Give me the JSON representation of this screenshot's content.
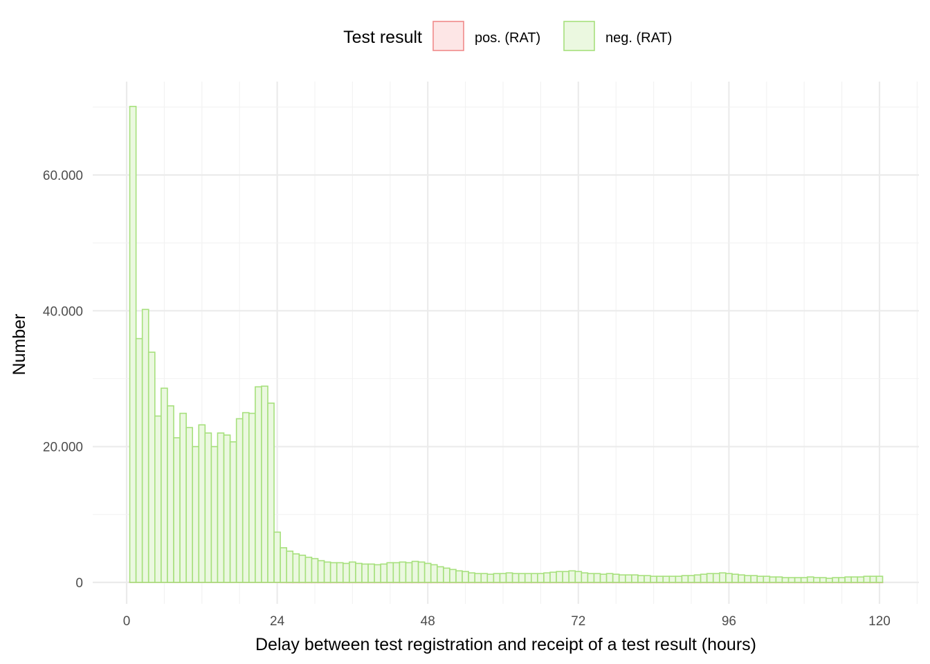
{
  "chart_data": {
    "type": "bar",
    "subtype": "histogram",
    "xlabel": "Delay between test registration and receipt of a test result (hours)",
    "ylabel": "Number",
    "legend": {
      "title": "Test result",
      "position": "top",
      "entries": [
        {
          "label": "pos. (RAT)",
          "fill": "#fde6e6",
          "stroke": "#f08a8a"
        },
        {
          "label": "neg. (RAT)",
          "fill": "#ebf8e0",
          "stroke": "#a6e07c"
        }
      ]
    },
    "xlim": [
      0,
      120
    ],
    "ylim": [
      0,
      70000
    ],
    "x_ticks": [
      0,
      24,
      48,
      72,
      96,
      120
    ],
    "x_tick_labels": [
      "0",
      "24",
      "48",
      "72",
      "96",
      "120"
    ],
    "y_ticks": [
      0,
      20000,
      40000,
      60000
    ],
    "y_tick_labels": [
      "0",
      "20.000",
      "40.000",
      "60.000"
    ],
    "grid": true,
    "bin_width_hours": 1,
    "series": [
      {
        "name": "pos. (RAT)",
        "values": [
          100,
          80,
          70,
          60,
          50,
          50,
          45,
          40,
          40,
          40,
          35,
          35,
          35,
          35,
          35,
          35,
          35,
          35,
          35,
          35,
          35,
          35,
          35,
          30,
          20,
          15,
          15,
          15,
          15,
          15,
          15,
          15,
          15,
          15,
          15,
          15,
          15,
          15,
          15,
          15,
          15,
          15,
          15,
          15,
          15,
          15,
          15,
          15,
          15,
          15,
          15,
          15,
          15,
          15,
          15,
          15,
          15,
          15,
          15,
          15,
          15,
          15,
          15,
          15,
          15,
          15,
          15,
          15,
          15,
          15,
          15,
          15,
          15,
          15,
          15,
          15,
          15,
          15,
          15,
          15,
          15,
          15,
          15,
          15,
          15,
          15,
          15,
          15,
          15,
          15,
          15,
          15,
          15,
          15,
          15,
          15,
          15,
          15,
          15,
          15,
          15,
          15,
          15,
          15,
          15,
          15,
          15,
          15,
          15,
          15,
          15,
          15,
          15,
          15,
          15,
          15,
          15,
          15,
          15,
          15
        ]
      },
      {
        "name": "neg. (RAT)",
        "values": [
          70100,
          35900,
          40200,
          33900,
          24500,
          28600,
          26000,
          21300,
          24900,
          22800,
          20000,
          23200,
          22000,
          20000,
          22000,
          21700,
          20700,
          24100,
          25000,
          24900,
          28800,
          28900,
          26400,
          7400,
          5100,
          4600,
          4200,
          4000,
          3700,
          3500,
          3200,
          3000,
          2900,
          2900,
          2800,
          3000,
          2800,
          2700,
          2700,
          2600,
          2700,
          2900,
          2900,
          3000,
          2900,
          3100,
          3000,
          2800,
          2600,
          2300,
          2100,
          1900,
          1700,
          1600,
          1400,
          1300,
          1300,
          1200,
          1300,
          1300,
          1400,
          1300,
          1300,
          1300,
          1300,
          1300,
          1400,
          1500,
          1600,
          1600,
          1700,
          1600,
          1400,
          1300,
          1300,
          1200,
          1300,
          1200,
          1100,
          1100,
          1100,
          1000,
          1000,
          900,
          900,
          900,
          900,
          900,
          1000,
          1000,
          1100,
          1200,
          1300,
          1300,
          1400,
          1300,
          1200,
          1100,
          1000,
          1000,
          900,
          900,
          800,
          800,
          700,
          700,
          700,
          700,
          800,
          700,
          700,
          600,
          700,
          700,
          800,
          800,
          800,
          900,
          900,
          900
        ]
      }
    ]
  }
}
